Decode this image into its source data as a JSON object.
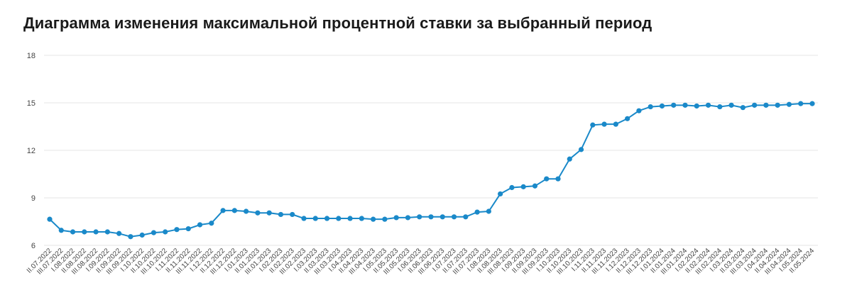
{
  "page": {
    "title": "Диаграмма изменения максимальной процентной ставки за выбранный период"
  },
  "colors": {
    "line": "#1a89c9",
    "grid": "#e6e6e6",
    "axis_text": "#444444"
  },
  "chart_data": {
    "type": "line",
    "title": "Диаграмма изменения максимальной процентной ставки за выбранный период",
    "xlabel": "",
    "ylabel": "",
    "ylim": [
      6,
      18
    ],
    "yticks": [
      6,
      9,
      12,
      15,
      18
    ],
    "grid": true,
    "categories": [
      "II.07.2022",
      "III.07.2022",
      "I.08.2022",
      "II.08.2022",
      "III.08.2022",
      "I.09.2022",
      "II.09.2022",
      "III.09.2022",
      "I.10.2022",
      "II.10.2022",
      "III.10.2022",
      "I.11.2022",
      "II.11.2022",
      "III.11.2022",
      "I.12.2022",
      "II.12.2022",
      "III.12.2022",
      "I.01.2023",
      "II.01.2023",
      "III.01.2023",
      "I.02.2023",
      "II.02.2023",
      "III.02.2023",
      "I.03.2023",
      "II.03.2023",
      "III.03.2023",
      "I.04.2023",
      "II.04.2023",
      "III.04.2023",
      "I.05.2023",
      "II.05.2023",
      "III.05.2023",
      "I.06.2023",
      "II.06.2023",
      "III.06.2023",
      "I.07.2023",
      "II.07.2023",
      "III.07.2023",
      "I.08.2023",
      "II.08.2023",
      "III.08.2023",
      "I.09.2023",
      "II.09.2023",
      "III.09.2023",
      "I.10.2023",
      "II.10.2023",
      "III.10.2023",
      "I.11.2023",
      "II.11.2023",
      "III.11.2023",
      "I.12.2023",
      "II.12.2023",
      "III.12.2023",
      "I.01.2024",
      "II.01.2024",
      "III.01.2024",
      "I.02.2024",
      "II.02.2024",
      "III.02.2024",
      "I.03.2024",
      "II.03.2024",
      "III.03.2024",
      "I.04.2024",
      "II.04.2024",
      "III.04.2024",
      "I.05.2024",
      "II.05.2024"
    ],
    "series": [
      {
        "values": [
          7.65,
          6.95,
          6.85,
          6.85,
          6.85,
          6.85,
          6.75,
          6.55,
          6.65,
          6.8,
          6.85,
          7.0,
          7.05,
          7.3,
          7.4,
          8.2,
          8.2,
          8.15,
          8.05,
          8.05,
          7.95,
          7.95,
          7.7,
          7.7,
          7.7,
          7.7,
          7.7,
          7.7,
          7.65,
          7.65,
          7.75,
          7.75,
          7.8,
          7.8,
          7.8,
          7.8,
          7.8,
          8.1,
          8.15,
          9.25,
          9.65,
          9.7,
          9.75,
          10.2,
          10.2,
          11.45,
          12.05,
          13.6,
          13.65,
          13.65,
          14.0,
          14.5,
          14.75,
          14.8,
          14.85,
          14.85,
          14.8,
          14.85,
          14.75,
          14.85,
          14.7,
          14.85,
          14.85,
          14.85,
          14.9,
          14.95,
          14.95
        ]
      }
    ]
  }
}
